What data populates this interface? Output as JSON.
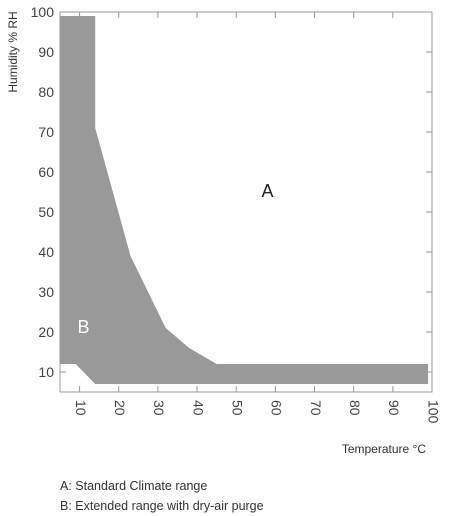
{
  "chart_data": {
    "type": "area",
    "xlabel": "Temperature °C",
    "ylabel": "Humidity % RH",
    "xlim": [
      5,
      100
    ],
    "ylim": [
      5,
      100
    ],
    "x_ticks": [
      10,
      20,
      30,
      40,
      50,
      60,
      70,
      80,
      90,
      100
    ],
    "y_ticks": [
      10,
      20,
      30,
      40,
      50,
      60,
      70,
      80,
      90,
      100
    ],
    "grid": false,
    "regions": [
      {
        "name": "A",
        "label": "A",
        "label_at": {
          "x": 58,
          "y": 55
        },
        "color": "#ffffff"
      },
      {
        "name": "B",
        "label": "B",
        "label_at": {
          "x": 11,
          "y": 21
        },
        "color": "#999999",
        "boundary": [
          {
            "x": 5,
            "y": 99
          },
          {
            "x": 14,
            "y": 99
          },
          {
            "x": 14,
            "y": 71
          },
          {
            "x": 23,
            "y": 39
          },
          {
            "x": 32,
            "y": 21
          },
          {
            "x": 38,
            "y": 16
          },
          {
            "x": 45,
            "y": 12
          },
          {
            "x": 99,
            "y": 12
          },
          {
            "x": 99,
            "y": 7
          },
          {
            "x": 14,
            "y": 7
          },
          {
            "x": 9,
            "y": 12
          },
          {
            "x": 5,
            "y": 12
          }
        ]
      }
    ]
  },
  "legend": {
    "line_a": "A: Standard Climate range",
    "line_b": "B: Extended range with dry-air purge"
  }
}
